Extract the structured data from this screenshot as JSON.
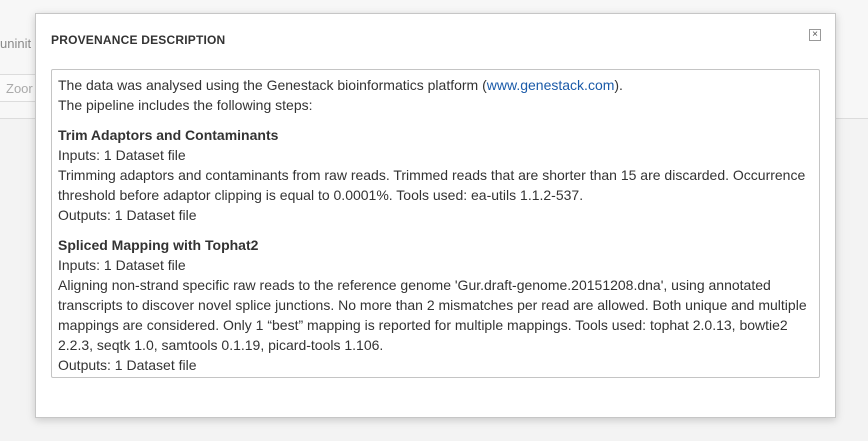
{
  "background": {
    "title_fragment": "uninit",
    "zoom_fragment": "Zoor"
  },
  "modal": {
    "title": "PROVENANCE DESCRIPTION",
    "close_glyph": "×",
    "intro": {
      "prefix": "The data was analysed using the Genestack bioinformatics platform (",
      "link_text": "www.genestack.com",
      "suffix": ").",
      "pipeline_line": "The pipeline includes the following steps:"
    },
    "steps": [
      {
        "title": "Trim Adaptors and Contaminants",
        "inputs": "Inputs: 1 Dataset file",
        "description": "Trimming adaptors and contaminants from raw reads. Trimmed reads that are shorter than 15 are discarded. Occurrence threshold before adaptor clipping is equal to 0.0001%. Tools used: ea-utils 1.1.2-537.",
        "outputs": "Outputs: 1 Dataset file"
      },
      {
        "title": "Spliced Mapping with Tophat2",
        "inputs": "Inputs: 1 Dataset file",
        "description": "Aligning non-strand specific raw reads to the reference genome 'Gur.draft-genome.20151208.dna', using annotated transcripts to discover novel splice junctions. No more than 2 mismatches per read are allowed. Both unique and multiple mappings are considered. Only 1 “best” mapping is reported for multiple mappings. Tools used: tophat 2.0.13, bowtie2 2.2.3, seqtk 1.0, samtools 0.1.19, picard-tools 1.106.",
        "outputs": "Outputs: 1 Dataset file"
      }
    ]
  }
}
